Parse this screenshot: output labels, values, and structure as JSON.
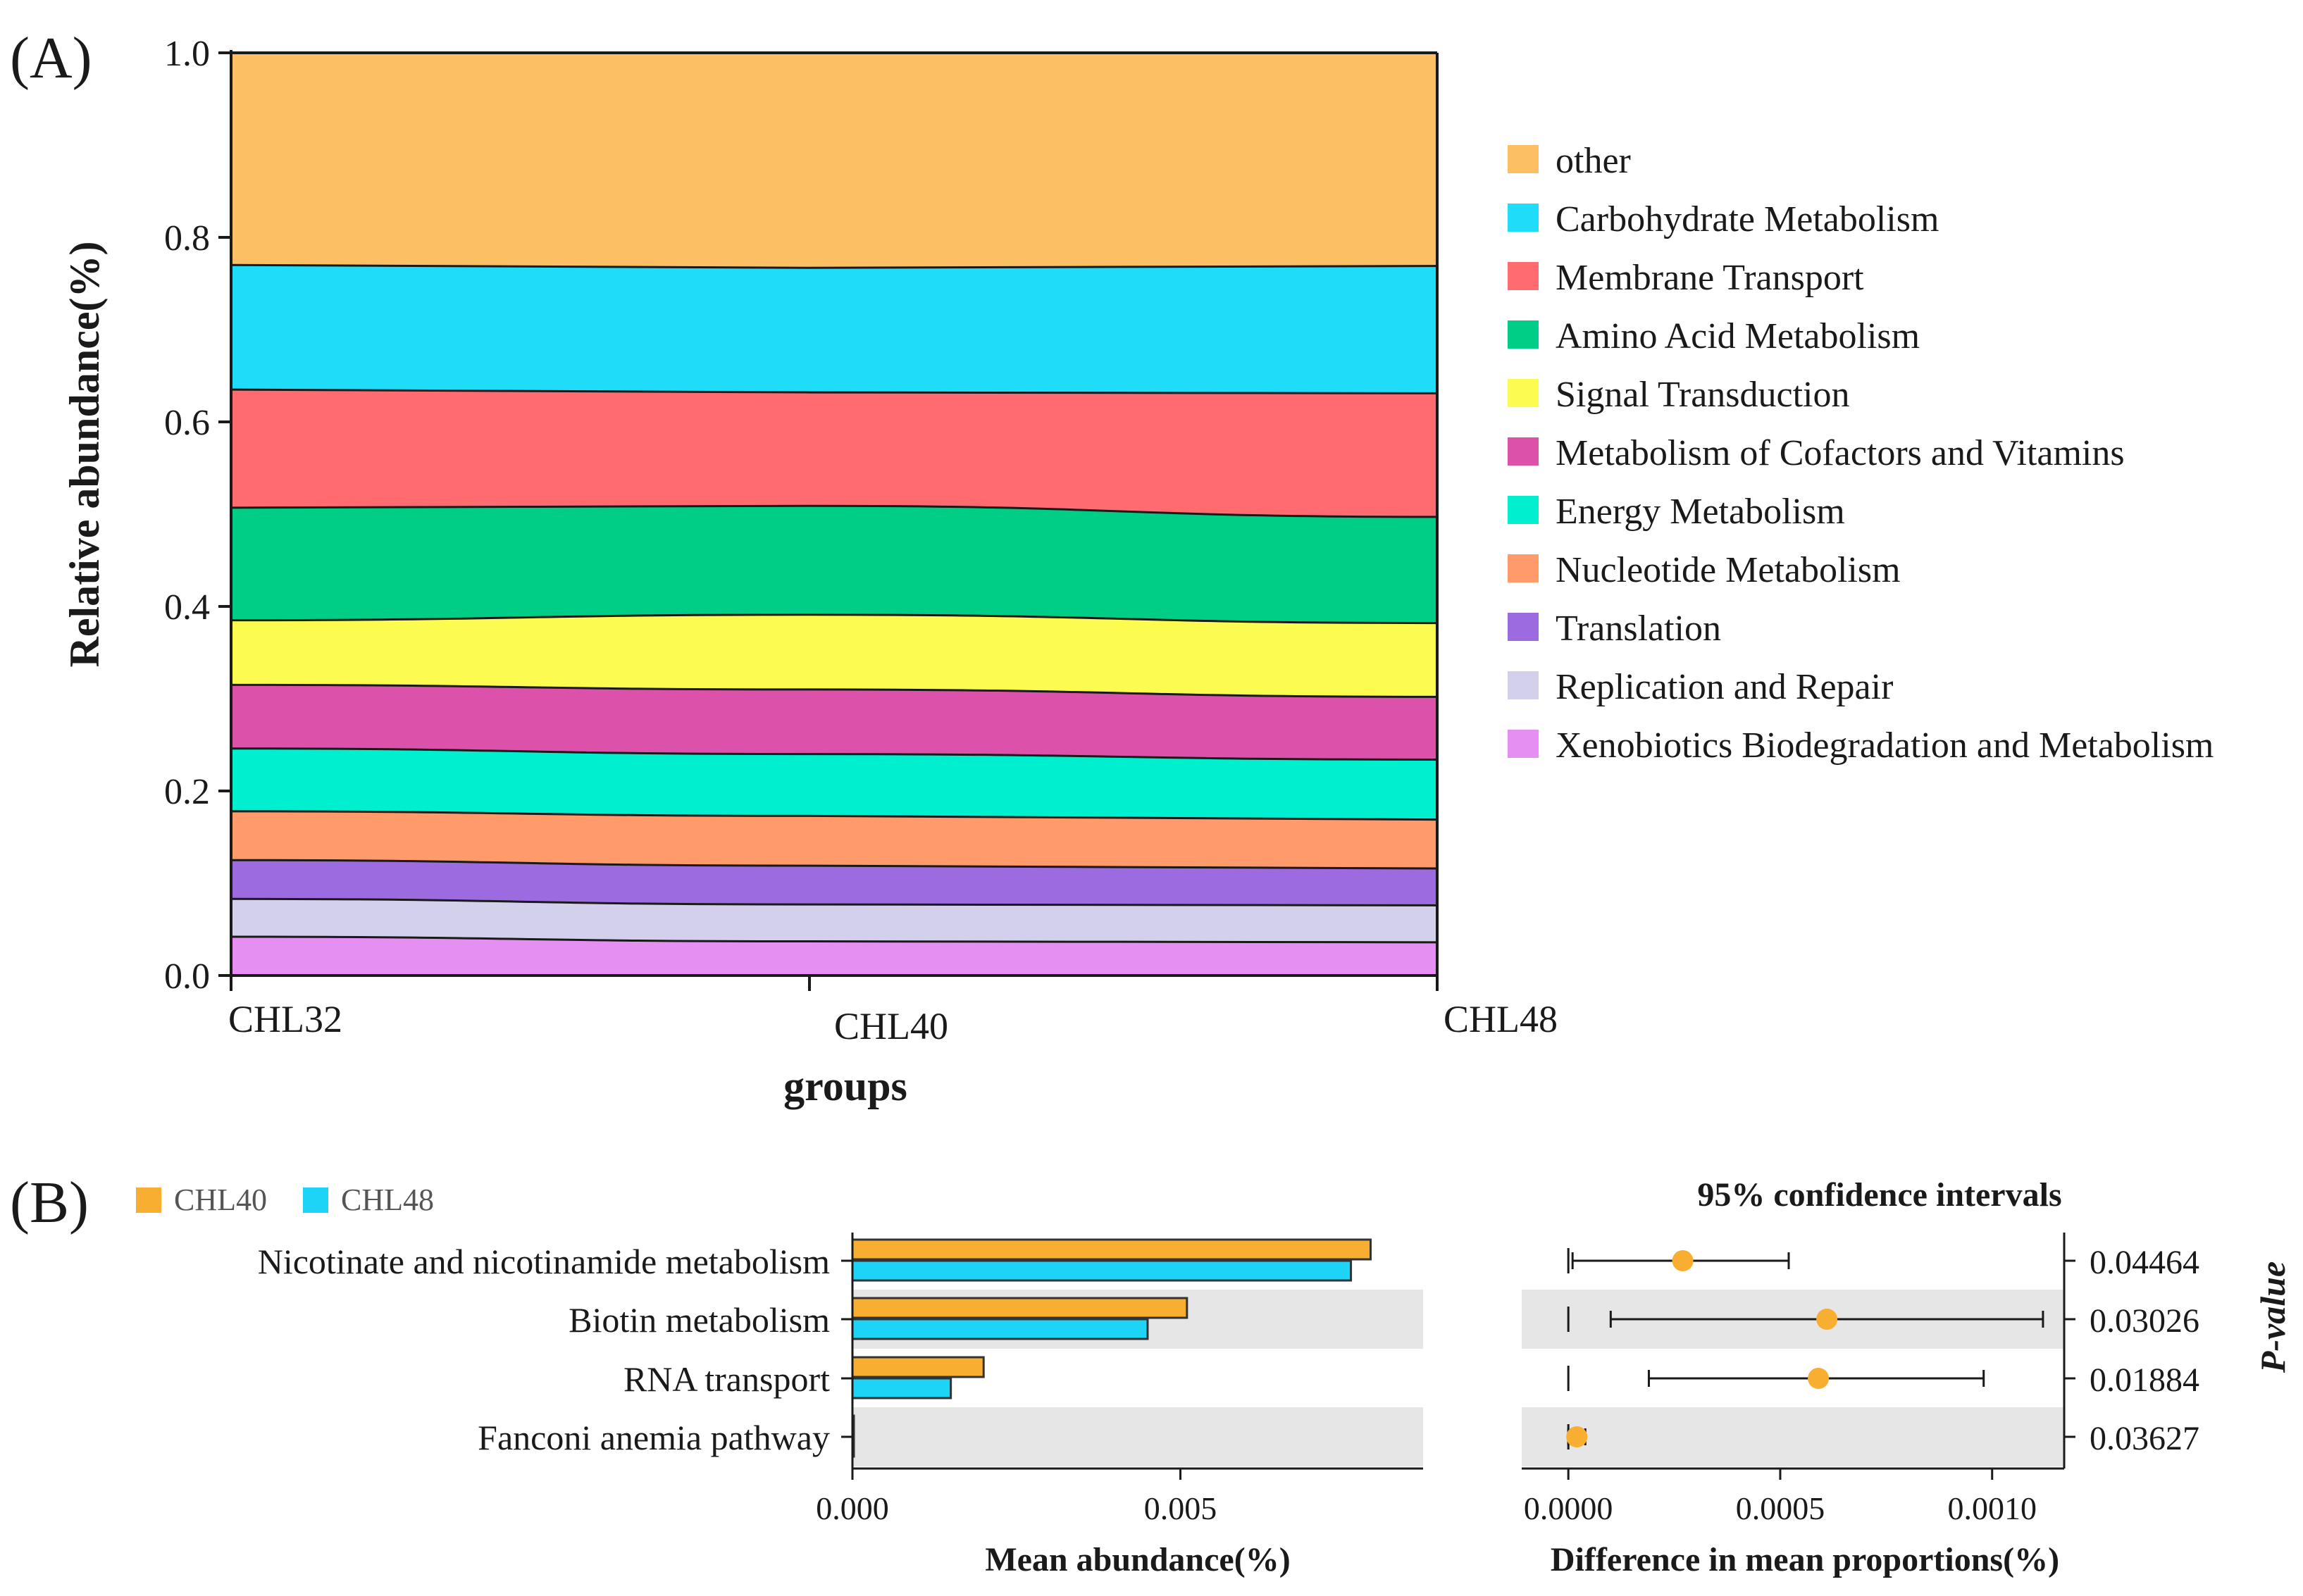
{
  "chart_data": [
    {
      "panel": "(A)",
      "type": "area",
      "stacked": true,
      "xlabel": "groups",
      "ylabel": "Relative abundance(%)",
      "ylim": [
        0,
        1
      ],
      "y_ticks": [
        "0.0",
        "0.2",
        "0.4",
        "0.6",
        "0.8",
        "1.0"
      ],
      "categories": [
        "CHL32",
        "CHL40",
        "CHL48"
      ],
      "legend_position": "right",
      "series": [
        {
          "name": "Xenobiotics Biodegradation and Metabolism",
          "color": "#E68FF2",
          "values": [
            0.042,
            0.037,
            0.036
          ]
        },
        {
          "name": "Replication and Repair",
          "color": "#D2D0EA",
          "values": [
            0.041,
            0.04,
            0.04
          ]
        },
        {
          "name": "Translation",
          "color": "#9D6BE0",
          "values": [
            0.042,
            0.042,
            0.04
          ]
        },
        {
          "name": "Nucleotide Metabolism",
          "color": "#FF9A6A",
          "values": [
            0.053,
            0.054,
            0.053
          ]
        },
        {
          "name": "Energy Metabolism",
          "color": "#00EFCF",
          "values": [
            0.068,
            0.067,
            0.065
          ]
        },
        {
          "name": "Metabolism of Cofactors and Vitamins",
          "color": "#DC52AA",
          "values": [
            0.069,
            0.07,
            0.068
          ]
        },
        {
          "name": "Signal Transduction",
          "color": "#FCFC50",
          "values": [
            0.07,
            0.081,
            0.08
          ]
        },
        {
          "name": "Amino Acid Metabolism",
          "color": "#00CE86",
          "values": [
            0.122,
            0.118,
            0.115
          ]
        },
        {
          "name": "Membrane Transport",
          "color": "#FF6B6F",
          "values": [
            0.128,
            0.123,
            0.134
          ]
        },
        {
          "name": "Carbohydrate Metabolism",
          "color": "#1FDDF8",
          "values": [
            0.135,
            0.135,
            0.138
          ]
        },
        {
          "name": "other",
          "color": "#FDBF63",
          "values": [
            0.23,
            0.233,
            0.231
          ]
        }
      ],
      "legend_order": [
        "other",
        "Carbohydrate Metabolism",
        "Membrane Transport",
        "Amino Acid Metabolism",
        "Signal Transduction",
        "Metabolism of Cofactors and Vitamins",
        "Energy Metabolism",
        "Nucleotide Metabolism",
        "Translation",
        "Replication and Repair",
        "Xenobiotics Biodegradation and Metabolism"
      ]
    },
    {
      "panel": "(B)",
      "type": "bar",
      "orientation": "horizontal",
      "xlabel": "Mean abundance(%)",
      "xlim": [
        0,
        0.0087
      ],
      "x_ticks": [
        0,
        0.005
      ],
      "x_tick_labels": [
        "0.000",
        "0.005"
      ],
      "categories": [
        "Nicotinate and nicotinamide metabolism",
        "Biotin metabolism",
        "RNA transport",
        "Fanconi anemia pathway"
      ],
      "legend_position": "top-left",
      "series": [
        {
          "name": "CHL40",
          "color": "#F8AE31",
          "values": [
            0.0079,
            0.0051,
            0.002,
            2e-05
          ]
        },
        {
          "name": "CHL48",
          "color": "#1DD3F6",
          "values": [
            0.0076,
            0.0045,
            0.0015,
            1e-05
          ]
        }
      ]
    },
    {
      "panel": "(B)",
      "type": "scatter",
      "title": "95% confidence intervals",
      "xlabel": "Difference in mean proportions(%)",
      "ylabel": "P-value",
      "xlim": [
        -0.00011,
        0.00117
      ],
      "x_ticks": [
        0,
        0.0005,
        0.001
      ],
      "x_tick_labels": [
        "0.0000",
        "0.0005",
        "0.0010"
      ],
      "categories": [
        "Nicotinate and nicotinamide metabolism",
        "Biotin metabolism",
        "RNA transport",
        "Fanconi anemia pathway"
      ],
      "color": "#F8AE31",
      "points": [
        {
          "diff": 0.00027,
          "ci": [
            1e-05,
            0.00052
          ],
          "p_value": "0.04464"
        },
        {
          "diff": 0.00061,
          "ci": [
            0.0001,
            0.00112
          ],
          "p_value": "0.03026"
        },
        {
          "diff": 0.00059,
          "ci": [
            0.00019,
            0.00098
          ],
          "p_value": "0.01884"
        },
        {
          "diff": 2e-05,
          "ci": [
            0.0,
            4e-05
          ],
          "p_value": "0.03627"
        }
      ]
    }
  ]
}
